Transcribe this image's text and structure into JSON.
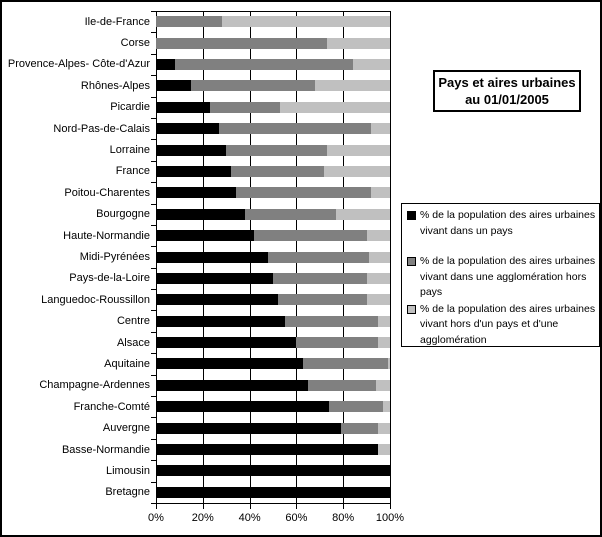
{
  "title_box": {
    "lines": [
      "Pays et aires urbaines",
      "au 01/01/2005"
    ]
  },
  "chart_data": {
    "type": "bar",
    "orientation": "horizontal",
    "stacked": true,
    "title": "Pays et aires urbaines au 01/01/2005",
    "categories": [
      "Ile-de-France",
      "Corse",
      "Provence-Alpes- Côte-d'Azur",
      "Rhônes-Alpes",
      "Picardie",
      "Nord-Pas-de-Calais",
      "Lorraine",
      "France",
      "Poitou-Charentes",
      "Bourgogne",
      "Haute-Normandie",
      "Midi-Pyrénées",
      "Pays-de-la-Loire",
      "Languedoc-Roussillon",
      "Centre",
      "Alsace",
      "Aquitaine",
      "Champagne-Ardennes",
      "Franche-Comté",
      "Auvergne",
      "Basse-Normandie",
      "Limousin",
      "Bretagne"
    ],
    "series": [
      {
        "name": "% de la population des aires urbaines vivant dans un pays",
        "color": "#000000",
        "values": [
          0,
          0,
          8,
          15,
          23,
          27,
          30,
          32,
          34,
          38,
          42,
          48,
          50,
          52,
          55,
          60,
          63,
          65,
          74,
          79,
          95,
          100,
          100
        ]
      },
      {
        "name": "% de la population des aires urbaines vivant dans une agglomération hors pays",
        "color": "#808080",
        "values": [
          28,
          73,
          76,
          53,
          30,
          65,
          43,
          40,
          58,
          39,
          48,
          43,
          40,
          38,
          40,
          35,
          36,
          29,
          23,
          16,
          0,
          0,
          0
        ]
      },
      {
        "name": "% de la population des aires urbaines vivant hors d'un pays et d'une agglomération",
        "color": "#c0c0c0",
        "values": [
          72,
          27,
          16,
          32,
          47,
          8,
          27,
          28,
          8,
          23,
          10,
          9,
          10,
          10,
          5,
          5,
          1,
          6,
          3,
          5,
          5,
          0,
          0
        ]
      }
    ],
    "x_axis": {
      "range": [
        0,
        100
      ],
      "tick_values": [
        0,
        20,
        40,
        60,
        80,
        100
      ],
      "tick_labels": [
        "0%",
        "20%",
        "40%",
        "60%",
        "80%",
        "100%"
      ]
    },
    "grid": "vertical major gridlines, black, behind bars",
    "legend": {
      "position": "right",
      "entries": [
        {
          "lines": [
            "% de la population des aires urbaines",
            "vivant dans un pays"
          ]
        },
        {
          "lines": [
            "% de la population des aires urbaines",
            "vivant dans une agglomération hors",
            "pays"
          ]
        },
        {
          "lines": [
            "% de la population des aires urbaines",
            "vivant hors d'un pays et d'une",
            "agglomération"
          ]
        }
      ]
    }
  },
  "colors": {
    "series_pays": "#000000",
    "series_agglomeration": "#808080",
    "series_hors": "#c0c0c0",
    "background": "#ffffff",
    "border": "#000000"
  }
}
